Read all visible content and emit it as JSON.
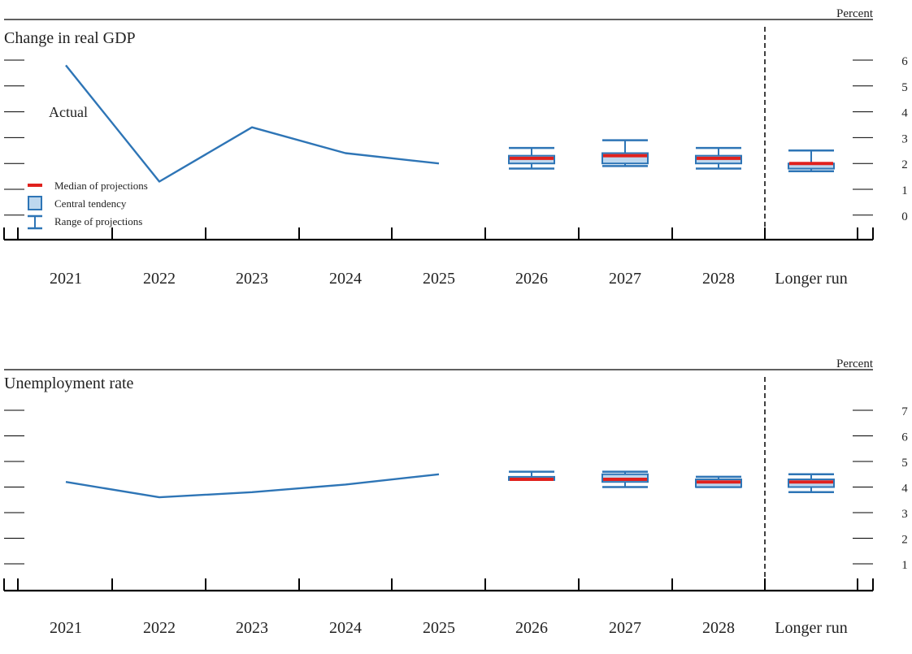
{
  "unit_label": "Percent",
  "legend": {
    "median_label": "Median of projections",
    "central_label": "Central tendency",
    "range_label": "Range of projections"
  },
  "colors": {
    "actual_line": "#2e75b6",
    "box_stroke": "#2e75b6",
    "box_fill": "#bdd7ee",
    "median": "#e0211d",
    "axis": "#000000",
    "text": "#222222"
  },
  "chart_data": [
    {
      "type": "line",
      "title": "Change in real GDP",
      "ylabel": "Percent",
      "ylim": [
        -1,
        6
      ],
      "yticks": [
        0,
        1,
        2,
        3,
        4,
        5,
        6
      ],
      "categories": [
        "2021",
        "2022",
        "2023",
        "2024",
        "2025",
        "2026",
        "2027",
        "2028",
        "Longer run"
      ],
      "actual": {
        "name": "Actual",
        "x": [
          "2021",
          "2022",
          "2023",
          "2024",
          "2025"
        ],
        "values": [
          5.8,
          1.3,
          3.4,
          2.4,
          2.0
        ]
      },
      "projections": [
        {
          "x": "2026",
          "median": 2.2,
          "central": [
            2.0,
            2.3
          ],
          "range": [
            1.8,
            2.6
          ]
        },
        {
          "x": "2027",
          "median": 2.3,
          "central": [
            2.0,
            2.4
          ],
          "range": [
            1.9,
            2.9
          ]
        },
        {
          "x": "2028",
          "median": 2.2,
          "central": [
            2.0,
            2.3
          ],
          "range": [
            1.8,
            2.6
          ]
        },
        {
          "x": "Longer run",
          "median": 2.0,
          "central": [
            1.8,
            2.0
          ],
          "range": [
            1.7,
            2.5
          ]
        }
      ]
    },
    {
      "type": "line",
      "title": "Unemployment rate",
      "ylabel": "Percent",
      "ylim": [
        0,
        7
      ],
      "yticks": [
        1,
        2,
        3,
        4,
        5,
        6,
        7
      ],
      "categories": [
        "2021",
        "2022",
        "2023",
        "2024",
        "2025",
        "2026",
        "2027",
        "2028",
        "Longer run"
      ],
      "actual": {
        "x": [
          "2021",
          "2022",
          "2023",
          "2024",
          "2025"
        ],
        "values": [
          4.2,
          3.6,
          3.8,
          4.1,
          4.5
        ]
      },
      "projections": [
        {
          "x": "2026",
          "median": 4.3,
          "central": [
            4.3,
            4.4
          ],
          "range": [
            4.3,
            4.6
          ]
        },
        {
          "x": "2027",
          "median": 4.3,
          "central": [
            4.2,
            4.5
          ],
          "range": [
            4.0,
            4.6
          ]
        },
        {
          "x": "2028",
          "median": 4.2,
          "central": [
            4.0,
            4.3
          ],
          "range": [
            4.0,
            4.4
          ]
        },
        {
          "x": "Longer run",
          "median": 4.2,
          "central": [
            4.0,
            4.3
          ],
          "range": [
            3.8,
            4.5
          ]
        }
      ]
    }
  ]
}
